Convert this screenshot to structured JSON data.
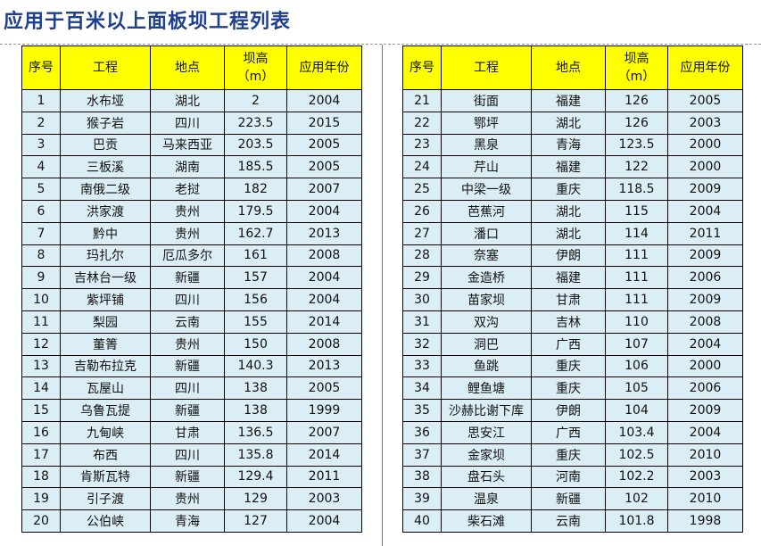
{
  "title": "应用于百米以上面板坝工程列表",
  "headers": {
    "index": "序号",
    "project": "工程",
    "location": "地点",
    "height_line1": "坝高",
    "height_line2": "（m）",
    "year": "应用年份"
  },
  "left_rows": [
    {
      "index": "1",
      "project": "水布垭",
      "location": "湖北",
      "height": "2",
      "year": "2004"
    },
    {
      "index": "2",
      "project": "猴子岩",
      "location": "四川",
      "height": "223.5",
      "year": "2015"
    },
    {
      "index": "3",
      "project": "巴贡",
      "location": "马来西亚",
      "height": "203.5",
      "year": "2005"
    },
    {
      "index": "4",
      "project": "三板溪",
      "location": "湖南",
      "height": "185.5",
      "year": "2005"
    },
    {
      "index": "5",
      "project": "南俄二级",
      "location": "老挝",
      "height": "182",
      "year": "2007"
    },
    {
      "index": "6",
      "project": "洪家渡",
      "location": "贵州",
      "height": "179.5",
      "year": "2004"
    },
    {
      "index": "7",
      "project": "黔中",
      "location": "贵州",
      "height": "162.7",
      "year": "2013"
    },
    {
      "index": "8",
      "project": "玛扎尔",
      "location": "厄瓜多尔",
      "height": "161",
      "year": "2008"
    },
    {
      "index": "9",
      "project": "吉林台一级",
      "location": "新疆",
      "height": "157",
      "year": "2004"
    },
    {
      "index": "10",
      "project": "紫坪铺",
      "location": "四川",
      "height": "156",
      "year": "2004"
    },
    {
      "index": "11",
      "project": "梨园",
      "location": "云南",
      "height": "155",
      "year": "2014"
    },
    {
      "index": "12",
      "project": "董箐",
      "location": "贵州",
      "height": "150",
      "year": "2008"
    },
    {
      "index": "13",
      "project": "吉勒布拉克",
      "location": "新疆",
      "height": "140.3",
      "year": "2013"
    },
    {
      "index": "14",
      "project": "瓦屋山",
      "location": "四川",
      "height": "138",
      "year": "2005"
    },
    {
      "index": "15",
      "project": "乌鲁瓦提",
      "location": "新疆",
      "height": "138",
      "year": "1999"
    },
    {
      "index": "16",
      "project": "九甸峡",
      "location": "甘肃",
      "height": "136.5",
      "year": "2007"
    },
    {
      "index": "17",
      "project": "布西",
      "location": "四川",
      "height": "135.8",
      "year": "2014"
    },
    {
      "index": "18",
      "project": "肯斯瓦特",
      "location": "新疆",
      "height": "129.4",
      "year": "2011"
    },
    {
      "index": "19",
      "project": "引子渡",
      "location": "贵州",
      "height": "129",
      "year": "2003"
    },
    {
      "index": "20",
      "project": "公伯峡",
      "location": "青海",
      "height": "127",
      "year": "2004"
    }
  ],
  "right_rows": [
    {
      "index": "21",
      "project": "街面",
      "location": "福建",
      "height": "126",
      "year": "2005"
    },
    {
      "index": "22",
      "project": "鄂坪",
      "location": "湖北",
      "height": "126",
      "year": "2003"
    },
    {
      "index": "23",
      "project": "黑泉",
      "location": "青海",
      "height": "123.5",
      "year": "2000"
    },
    {
      "index": "24",
      "project": "芹山",
      "location": "福建",
      "height": "122",
      "year": "2000"
    },
    {
      "index": "25",
      "project": "中梁一级",
      "location": "重庆",
      "height": "118.5",
      "year": "2009"
    },
    {
      "index": "26",
      "project": "芭蕉河",
      "location": "湖北",
      "height": "115",
      "year": "2004"
    },
    {
      "index": "27",
      "project": "潘口",
      "location": "湖北",
      "height": "114",
      "year": "2011"
    },
    {
      "index": "28",
      "project": "奈塞",
      "location": "伊朗",
      "height": "111",
      "year": "2009"
    },
    {
      "index": "29",
      "project": "金造桥",
      "location": "福建",
      "height": "111",
      "year": "2006"
    },
    {
      "index": "30",
      "project": "苗家坝",
      "location": "甘肃",
      "height": "111",
      "year": "2009"
    },
    {
      "index": "31",
      "project": "双沟",
      "location": "吉林",
      "height": "110",
      "year": "2008"
    },
    {
      "index": "32",
      "project": "洞巴",
      "location": "广西",
      "height": "107",
      "year": "2004"
    },
    {
      "index": "33",
      "project": "鱼跳",
      "location": "重庆",
      "height": "106",
      "year": "2000"
    },
    {
      "index": "34",
      "project": "鲤鱼塘",
      "location": "重庆",
      "height": "105",
      "year": "2006"
    },
    {
      "index": "35",
      "project": "沙赫比谢下库",
      "location": "伊朗",
      "height": "104",
      "year": "2009"
    },
    {
      "index": "36",
      "project": "思安江",
      "location": "广西",
      "height": "103.4",
      "year": "2004"
    },
    {
      "index": "37",
      "project": "金家坝",
      "location": "重庆",
      "height": "102.5",
      "year": "2010"
    },
    {
      "index": "38",
      "project": "盘石头",
      "location": "河南",
      "height": "102.2",
      "year": "2003"
    },
    {
      "index": "39",
      "project": "温泉",
      "location": "新疆",
      "height": "102",
      "year": "2010"
    },
    {
      "index": "40",
      "project": "柴石滩",
      "location": "云南",
      "height": "101.8",
      "year": "1998"
    }
  ]
}
